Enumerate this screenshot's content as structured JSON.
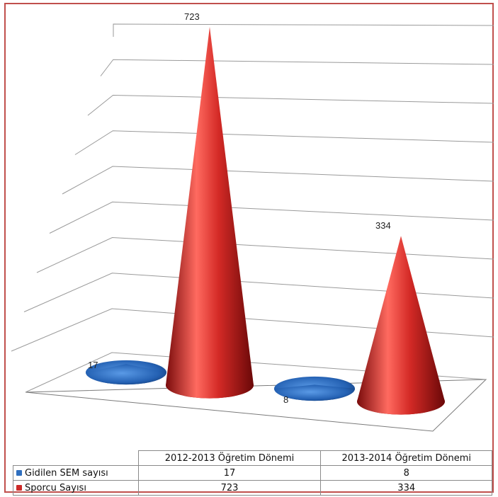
{
  "chart_data": {
    "type": "bar",
    "shape": "3d-cone",
    "categories": [
      "2012-2013 Öğretim Dönemi",
      "2013-2014 Öğretim Dönemi"
    ],
    "series": [
      {
        "name": "Gidilen SEM sayısı",
        "values": [
          17,
          8
        ],
        "color": "#2f6fbf"
      },
      {
        "name": "Sporcu Sayısı",
        "values": [
          723,
          334
        ],
        "color": "#cc2a28"
      }
    ],
    "ylim": [
      0,
      800
    ],
    "grid": true,
    "legend": "data-table-below",
    "data_labels": [
      "17",
      "723",
      "8",
      "334"
    ]
  }
}
